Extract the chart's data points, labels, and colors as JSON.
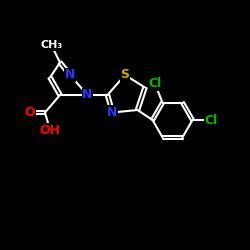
{
  "background": "#000000",
  "bond_color": "#ffffff",
  "bond_lw": 1.5,
  "atom_colors": {
    "N": "#3333ff",
    "O": "#ff0000",
    "S": "#ccaa00",
    "Cl": "#00bb00",
    "C": "#ffffff"
  },
  "font_size": 9,
  "figsize": [
    2.5,
    2.5
  ],
  "dpi": 100
}
